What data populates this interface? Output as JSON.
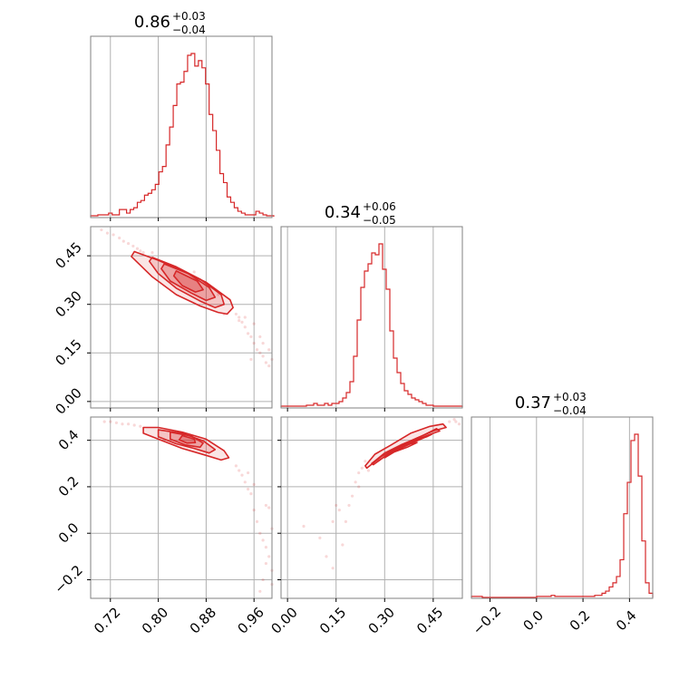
{
  "chart_data": {
    "type": "corner",
    "color": "#d62728",
    "grid": true,
    "parameters": [
      {
        "median": "0.86",
        "upper": "+0.03",
        "lower": "−0.04",
        "range": [
          0.687,
          0.99
        ],
        "ticks": [
          0.72,
          0.8,
          0.88,
          0.96
        ],
        "tick_labels": [
          "0.72",
          "0.80",
          "0.88",
          "0.96"
        ],
        "histogram": {
          "bin_start": 0.687,
          "bin_width": 0.006,
          "counts": [
            0.5,
            0.5,
            1,
            1,
            1,
            2,
            1,
            1,
            4,
            4,
            2,
            4,
            5,
            8,
            9,
            12,
            13,
            15,
            18,
            25,
            28,
            40,
            50,
            62,
            74,
            75,
            81,
            90,
            91,
            84,
            87,
            83,
            74,
            57,
            48,
            37,
            24,
            19,
            11,
            8,
            5,
            3,
            2,
            1,
            1,
            1,
            3,
            2,
            1,
            0.5,
            0.5
          ]
        }
      },
      {
        "median": "0.34",
        "upper": "+0.06",
        "lower": "−0.05",
        "range": [
          -0.02,
          0.54
        ],
        "ticks": [
          0.0,
          0.15,
          0.3,
          0.45
        ],
        "tick_labels": [
          "0.00",
          "0.15",
          "0.30",
          "0.45"
        ],
        "histogram": {
          "bin_start": -0.02,
          "bin_width": 0.0112,
          "counts": [
            0.5,
            0.5,
            0.5,
            0.5,
            0.5,
            0.5,
            0.5,
            1,
            1,
            2,
            1,
            1,
            2,
            1,
            2,
            2,
            3,
            5,
            8,
            14,
            28,
            48,
            66,
            75,
            79,
            85,
            84,
            90,
            76,
            65,
            42,
            27,
            19,
            13,
            9,
            7,
            5,
            4,
            3,
            2,
            1,
            1,
            0.5,
            0.5,
            0.5,
            0.5,
            0.5,
            0.5,
            0.5,
            0.5
          ]
        }
      },
      {
        "median": "0.37",
        "upper": "+0.03",
        "lower": "−0.04",
        "range": [
          -0.28,
          0.5
        ],
        "ticks": [
          -0.2,
          0.0,
          0.2,
          0.4
        ],
        "tick_labels": [
          "−0.2",
          "0.0",
          "0.2",
          "0.4"
        ],
        "histogram": {
          "bin_start": -0.28,
          "bin_width": 0.0156,
          "counts": [
            0.5,
            0.5,
            0.5,
            0,
            0,
            0,
            0,
            0,
            0,
            0,
            0,
            0,
            0,
            0,
            0,
            0,
            0,
            0,
            0.5,
            0.5,
            0.5,
            0.5,
            1,
            0.5,
            0.5,
            0.5,
            0.5,
            0.5,
            0.5,
            0.5,
            0.5,
            0.5,
            0.5,
            0.5,
            1,
            1,
            2,
            3,
            5,
            7,
            10,
            18,
            40,
            55,
            75,
            78,
            58,
            27,
            7,
            2
          ]
        }
      }
    ],
    "pairs": [
      {
        "row": 1,
        "col": 0,
        "contours": [
          [
            [
              0.76,
              0.463
            ],
            [
              0.8,
              0.436
            ],
            [
              0.84,
              0.404
            ],
            [
              0.88,
              0.368
            ],
            [
              0.92,
              0.314
            ],
            [
              0.925,
              0.29
            ],
            [
              0.915,
              0.27
            ],
            [
              0.9,
              0.275
            ],
            [
              0.87,
              0.295
            ],
            [
              0.83,
              0.33
            ],
            [
              0.79,
              0.385
            ],
            [
              0.755,
              0.448
            ]
          ],
          [
            [
              0.79,
              0.445
            ],
            [
              0.83,
              0.416
            ],
            [
              0.87,
              0.378
            ],
            [
              0.905,
              0.33
            ],
            [
              0.91,
              0.3
            ],
            [
              0.895,
              0.29
            ],
            [
              0.87,
              0.31
            ],
            [
              0.83,
              0.35
            ],
            [
              0.8,
              0.395
            ],
            [
              0.785,
              0.433
            ]
          ],
          [
            [
              0.81,
              0.425
            ],
            [
              0.85,
              0.395
            ],
            [
              0.885,
              0.352
            ],
            [
              0.895,
              0.322
            ],
            [
              0.88,
              0.312
            ],
            [
              0.855,
              0.335
            ],
            [
              0.82,
              0.372
            ],
            [
              0.805,
              0.41
            ]
          ],
          [
            [
              0.83,
              0.403
            ],
            [
              0.865,
              0.372
            ],
            [
              0.875,
              0.345
            ],
            [
              0.862,
              0.338
            ],
            [
              0.84,
              0.358
            ],
            [
              0.826,
              0.388
            ]
          ]
        ],
        "scatter": [
          [
            0.705,
            0.53
          ],
          [
            0.715,
            0.52
          ],
          [
            0.725,
            0.515
          ],
          [
            0.735,
            0.505
          ],
          [
            0.742,
            0.495
          ],
          [
            0.75,
            0.488
          ],
          [
            0.758,
            0.48
          ],
          [
            0.765,
            0.472
          ],
          [
            0.77,
            0.465
          ],
          [
            0.775,
            0.46
          ],
          [
            0.93,
            0.27
          ],
          [
            0.935,
            0.26
          ],
          [
            0.94,
            0.245
          ],
          [
            0.945,
            0.23
          ],
          [
            0.95,
            0.21
          ],
          [
            0.955,
            0.2
          ],
          [
            0.96,
            0.18
          ],
          [
            0.965,
            0.16
          ],
          [
            0.97,
            0.15
          ],
          [
            0.975,
            0.14
          ],
          [
            0.98,
            0.12
          ],
          [
            0.985,
            0.11
          ],
          [
            0.99,
            0.13
          ],
          [
            0.975,
            0.18
          ],
          [
            0.985,
            0.16
          ],
          [
            0.96,
            0.24
          ],
          [
            0.955,
            0.13
          ],
          [
            0.945,
            0.26
          ],
          [
            0.935,
            0.25
          ],
          [
            0.97,
            0.2
          ],
          [
            0.79,
            0.46
          ],
          [
            0.86,
            0.4
          ],
          [
            0.9,
            0.33
          ],
          [
            0.82,
            0.37
          ],
          [
            0.91,
            0.27
          ]
        ]
      },
      {
        "row": 2,
        "col": 0,
        "contours": [
          [
            [
              0.775,
              0.455
            ],
            [
              0.8,
              0.455
            ],
            [
              0.84,
              0.435
            ],
            [
              0.88,
              0.405
            ],
            [
              0.91,
              0.355
            ],
            [
              0.918,
              0.325
            ],
            [
              0.905,
              0.315
            ],
            [
              0.88,
              0.335
            ],
            [
              0.84,
              0.365
            ],
            [
              0.8,
              0.405
            ],
            [
              0.775,
              0.43
            ]
          ],
          [
            [
              0.8,
              0.445
            ],
            [
              0.84,
              0.43
            ],
            [
              0.875,
              0.398
            ],
            [
              0.895,
              0.36
            ],
            [
              0.885,
              0.345
            ],
            [
              0.86,
              0.365
            ],
            [
              0.83,
              0.385
            ],
            [
              0.8,
              0.415
            ]
          ],
          [
            [
              0.82,
              0.435
            ],
            [
              0.855,
              0.418
            ],
            [
              0.875,
              0.388
            ],
            [
              0.87,
              0.37
            ],
            [
              0.845,
              0.38
            ],
            [
              0.82,
              0.405
            ]
          ],
          [
            [
              0.84,
              0.42
            ],
            [
              0.86,
              0.405
            ],
            [
              0.862,
              0.39
            ],
            [
              0.848,
              0.388
            ],
            [
              0.835,
              0.402
            ]
          ]
        ],
        "scatter": [
          [
            0.71,
            0.48
          ],
          [
            0.72,
            0.48
          ],
          [
            0.73,
            0.475
          ],
          [
            0.74,
            0.47
          ],
          [
            0.75,
            0.47
          ],
          [
            0.76,
            0.465
          ],
          [
            0.77,
            0.46
          ],
          [
            0.93,
            0.29
          ],
          [
            0.935,
            0.27
          ],
          [
            0.94,
            0.25
          ],
          [
            0.945,
            0.22
          ],
          [
            0.95,
            0.19
          ],
          [
            0.955,
            0.17
          ],
          [
            0.96,
            0.1
          ],
          [
            0.965,
            0.05
          ],
          [
            0.97,
            0.0
          ],
          [
            0.975,
            -0.03
          ],
          [
            0.98,
            -0.06
          ],
          [
            0.985,
            -0.1
          ],
          [
            0.99,
            -0.16
          ],
          [
            0.975,
            -0.2
          ],
          [
            0.97,
            -0.25
          ],
          [
            0.98,
            0.12
          ],
          [
            0.985,
            0.11
          ],
          [
            0.99,
            0.02
          ],
          [
            0.96,
            0.21
          ],
          [
            0.95,
            0.26
          ],
          [
            0.98,
            -0.13
          ],
          [
            0.99,
            -0.22
          ]
        ]
      },
      {
        "row": 2,
        "col": 1,
        "contours": [
          [
            [
              0.24,
              0.29
            ],
            [
              0.27,
              0.34
            ],
            [
              0.32,
              0.38
            ],
            [
              0.38,
              0.43
            ],
            [
              0.44,
              0.46
            ],
            [
              0.48,
              0.47
            ],
            [
              0.49,
              0.455
            ],
            [
              0.45,
              0.44
            ],
            [
              0.4,
              0.41
            ],
            [
              0.34,
              0.37
            ],
            [
              0.29,
              0.33
            ],
            [
              0.245,
              0.28
            ]
          ],
          [
            [
              0.26,
              0.3
            ],
            [
              0.3,
              0.345
            ],
            [
              0.35,
              0.38
            ],
            [
              0.41,
              0.415
            ],
            [
              0.46,
              0.45
            ],
            [
              0.47,
              0.44
            ],
            [
              0.43,
              0.42
            ],
            [
              0.37,
              0.385
            ],
            [
              0.31,
              0.34
            ],
            [
              0.265,
              0.295
            ]
          ],
          [
            [
              0.28,
              0.31
            ],
            [
              0.32,
              0.35
            ],
            [
              0.37,
              0.38
            ],
            [
              0.42,
              0.41
            ],
            [
              0.445,
              0.425
            ],
            [
              0.43,
              0.415
            ],
            [
              0.38,
              0.39
            ],
            [
              0.33,
              0.36
            ],
            [
              0.285,
              0.315
            ]
          ],
          [
            [
              0.3,
              0.33
            ],
            [
              0.34,
              0.36
            ],
            [
              0.38,
              0.385
            ],
            [
              0.4,
              0.39
            ],
            [
              0.37,
              0.37
            ],
            [
              0.33,
              0.35
            ],
            [
              0.3,
              0.325
            ]
          ]
        ],
        "scatter": [
          [
            0.05,
            0.03
          ],
          [
            0.1,
            -0.02
          ],
          [
            0.14,
            0.05
          ],
          [
            0.16,
            0.1
          ],
          [
            0.18,
            0.05
          ],
          [
            0.2,
            0.16
          ],
          [
            0.21,
            0.22
          ],
          [
            0.22,
            0.26
          ],
          [
            0.23,
            0.28
          ],
          [
            0.15,
            0.12
          ],
          [
            0.12,
            -0.1
          ],
          [
            0.17,
            -0.05
          ],
          [
            0.19,
            0.12
          ],
          [
            0.5,
            0.48
          ],
          [
            0.52,
            0.48
          ],
          [
            0.53,
            0.47
          ],
          [
            0.515,
            0.49
          ],
          [
            0.14,
            -0.15
          ],
          [
            0.22,
            0.2
          ],
          [
            0.24,
            0.31
          ],
          [
            0.25,
            0.27
          ]
        ]
      }
    ]
  }
}
